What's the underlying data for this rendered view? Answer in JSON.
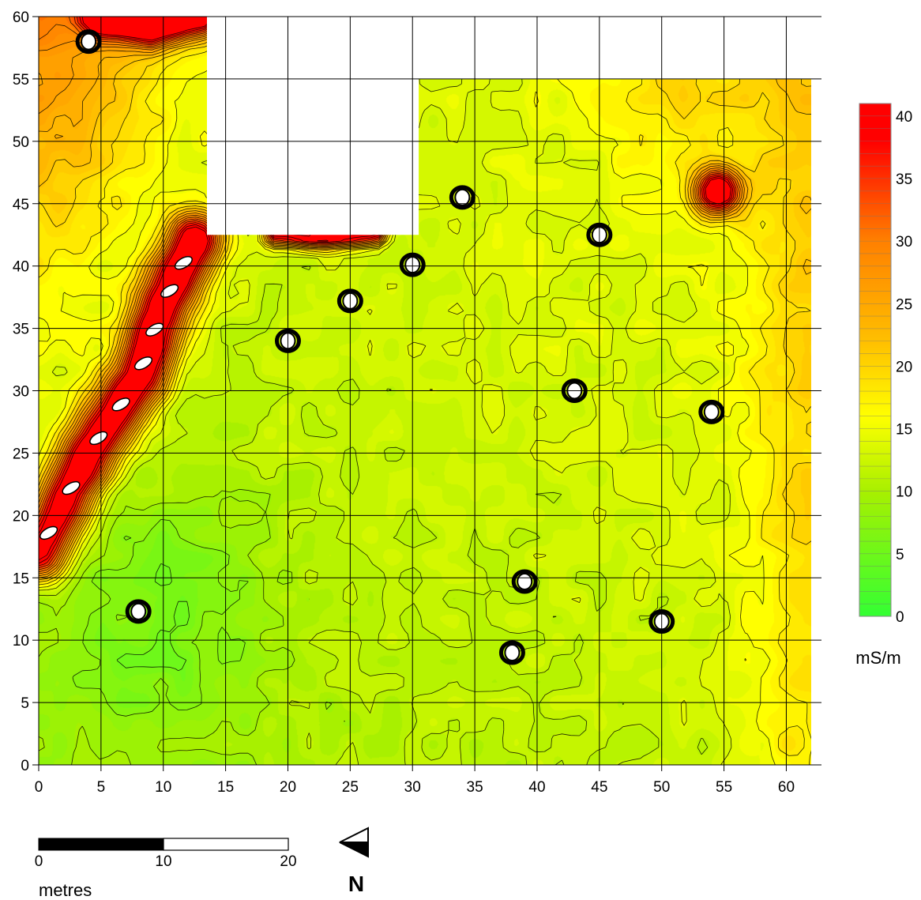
{
  "chart_data": {
    "type": "heatmap",
    "xlim": [
      0,
      62
    ],
    "ylim": [
      0,
      60
    ],
    "x_ticks": [
      0,
      5,
      10,
      15,
      20,
      25,
      30,
      35,
      40,
      45,
      50,
      55,
      60
    ],
    "y_ticks": [
      0,
      5,
      10,
      15,
      20,
      25,
      30,
      35,
      40,
      45,
      50,
      55,
      60
    ],
    "grid": true,
    "colorbar": {
      "unit_label": "mS/m",
      "min": 0,
      "max": 41,
      "ticks": [
        0,
        5,
        10,
        15,
        20,
        25,
        30,
        35,
        40
      ],
      "colors": [
        "#33ff33",
        "#a8f000",
        "#ffff00",
        "#ffbf00",
        "#ff8000",
        "#ff0000"
      ],
      "color_stops": [
        0,
        10,
        16,
        22,
        30,
        38
      ]
    },
    "survey_boundary": [
      [
        0,
        0
      ],
      [
        62,
        0
      ],
      [
        62,
        55
      ],
      [
        30.5,
        55
      ],
      [
        30.5,
        42.5
      ],
      [
        13.5,
        42.5
      ],
      [
        13.5,
        60
      ],
      [
        0,
        60
      ]
    ],
    "anomalies": {
      "linear_high": {
        "path": [
          [
            0,
            17
          ],
          [
            4,
            25
          ],
          [
            8,
            31
          ],
          [
            10,
            37
          ],
          [
            12.5,
            42
          ]
        ],
        "value": 41
      },
      "north_edge_high": {
        "path": [
          [
            5,
            60
          ],
          [
            9,
            59
          ],
          [
            13,
            60
          ]
        ],
        "value": 41
      },
      "cutout_edge_high": {
        "path": [
          [
            19,
            42.6
          ],
          [
            23,
            42.3
          ],
          [
            27,
            42.6
          ]
        ],
        "value": 41
      },
      "point_high": {
        "x": 54.5,
        "y": 46,
        "value": 41
      },
      "point_dipoles": [
        {
          "x": 8,
          "y": 12.3
        },
        {
          "x": 20,
          "y": 34
        },
        {
          "x": 43,
          "y": 30
        },
        {
          "x": 39,
          "y": 14.7
        },
        {
          "x": 38,
          "y": 9
        },
        {
          "x": 45,
          "y": 42.5
        },
        {
          "x": 34,
          "y": 45.5
        },
        {
          "x": 25,
          "y": 37.2
        },
        {
          "x": 30,
          "y": 40.1
        },
        {
          "x": 50,
          "y": 11.5
        },
        {
          "x": 54,
          "y": 28.3
        },
        {
          "x": 4,
          "y": 58
        }
      ]
    },
    "background": {
      "description_values": "low values (~5 mS/m) toward lower-left, ~10-12 mS/m in centre, rising to ~20-24 mS/m along the top-left edge and ~16 mS/m at the right edge"
    }
  },
  "scale_bar": {
    "labels": [
      "0",
      "10",
      "20"
    ],
    "values_m": [
      0,
      10,
      20
    ],
    "unit": "metres"
  },
  "north_arrow": {
    "label": "N",
    "direction": "left"
  }
}
